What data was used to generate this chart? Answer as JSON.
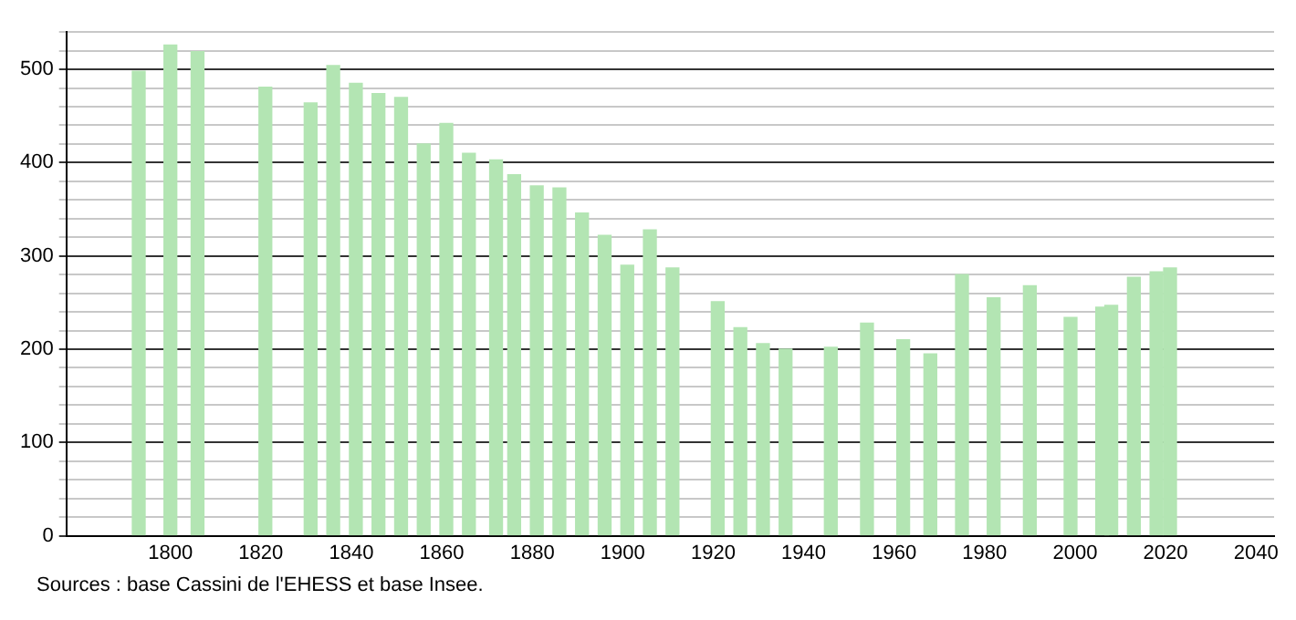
{
  "chart_data": {
    "type": "bar",
    "x": [
      1793,
      1800,
      1806,
      1821,
      1831,
      1836,
      1841,
      1846,
      1851,
      1856,
      1861,
      1866,
      1872,
      1876,
      1881,
      1886,
      1891,
      1896,
      1901,
      1906,
      1911,
      1921,
      1926,
      1931,
      1936,
      1946,
      1954,
      1962,
      1968,
      1975,
      1982,
      1990,
      1999,
      2006,
      2008,
      2013,
      2018,
      2021
    ],
    "values": [
      498,
      526,
      519,
      481,
      464,
      504,
      485,
      474,
      470,
      420,
      442,
      410,
      403,
      387,
      375,
      373,
      346,
      322,
      290,
      328,
      287,
      251,
      223,
      206,
      200,
      202,
      228,
      210,
      195,
      280,
      255,
      268,
      234,
      245,
      247,
      277,
      283,
      287
    ],
    "color": "#b3e5b3",
    "xlim": [
      1777,
      2044
    ],
    "xticks": [
      1800,
      1820,
      1840,
      1860,
      1880,
      1900,
      1920,
      1940,
      1960,
      1980,
      2000,
      2020,
      2040
    ],
    "ylim": [
      0,
      540
    ],
    "yticks": [
      0,
      {
        "value": 20,
        "label": null
      },
      {
        "value": 40,
        "label": null
      },
      {
        "value": 60,
        "label": null
      },
      {
        "value": 80,
        "label": null
      },
      100,
      {
        "value": 120,
        "label": null
      },
      {
        "value": 140,
        "label": null
      },
      {
        "value": 160,
        "label": null
      },
      {
        "value": 180,
        "label": null
      },
      200,
      {
        "value": 220,
        "label": null
      },
      {
        "value": 240,
        "label": null
      },
      {
        "value": 260,
        "label": null
      },
      {
        "value": 280,
        "label": null
      },
      300,
      {
        "value": 320,
        "label": null
      },
      {
        "value": 340,
        "label": null
      },
      {
        "value": 360,
        "label": null
      },
      {
        "value": 380,
        "label": null
      },
      400,
      {
        "value": 420,
        "label": null
      },
      {
        "value": 440,
        "label": null
      },
      {
        "value": 460,
        "label": null
      },
      {
        "value": 480,
        "label": null
      },
      500,
      {
        "value": 520,
        "label": null
      },
      {
        "value": 540,
        "label": null
      }
    ],
    "grid": "y",
    "legend": false,
    "annotations": [
      "Sources : base Cassini de l'EHESS et base Insee."
    ]
  }
}
